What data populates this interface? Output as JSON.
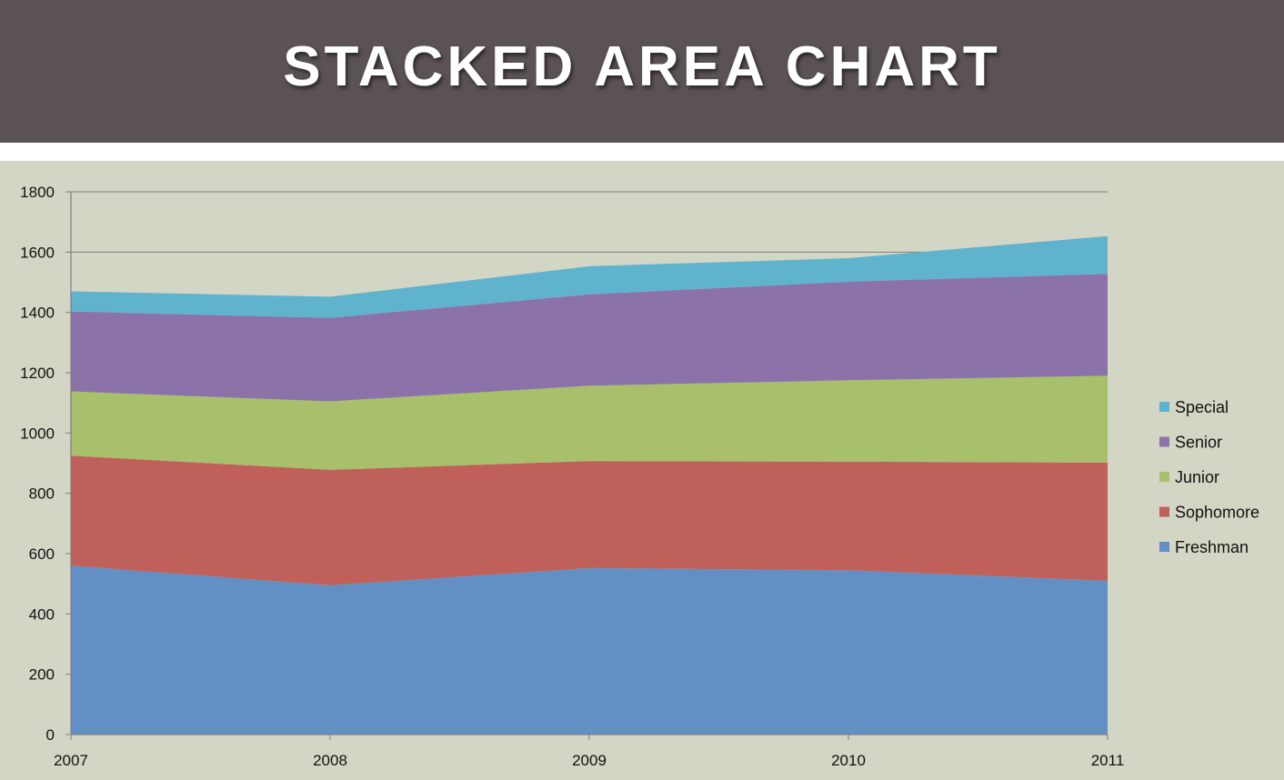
{
  "header": {
    "title": "STACKED AREA CHART"
  },
  "chart_data": {
    "type": "area",
    "stacked": true,
    "x": [
      "2007",
      "2008",
      "2009",
      "2010",
      "2011"
    ],
    "ylim": [
      0,
      1800
    ],
    "yticks": [
      0,
      200,
      400,
      600,
      800,
      1000,
      1200,
      1400,
      1600,
      1800
    ],
    "grid": true,
    "legend_position": "right",
    "series": [
      {
        "name": "Freshman",
        "color": "#6290c5",
        "values": [
          560,
          495,
          552,
          545,
          510
        ]
      },
      {
        "name": "Sophomore",
        "color": "#c0605a",
        "values": [
          365,
          383,
          355,
          360,
          392
        ]
      },
      {
        "name": "Junior",
        "color": "#a8bf6c",
        "values": [
          213,
          227,
          250,
          270,
          288
        ]
      },
      {
        "name": "Senior",
        "color": "#8b73aa",
        "values": [
          265,
          277,
          303,
          327,
          338
        ]
      },
      {
        "name": "Special",
        "color": "#5fb3cd",
        "values": [
          67,
          70,
          93,
          78,
          125
        ]
      }
    ]
  }
}
